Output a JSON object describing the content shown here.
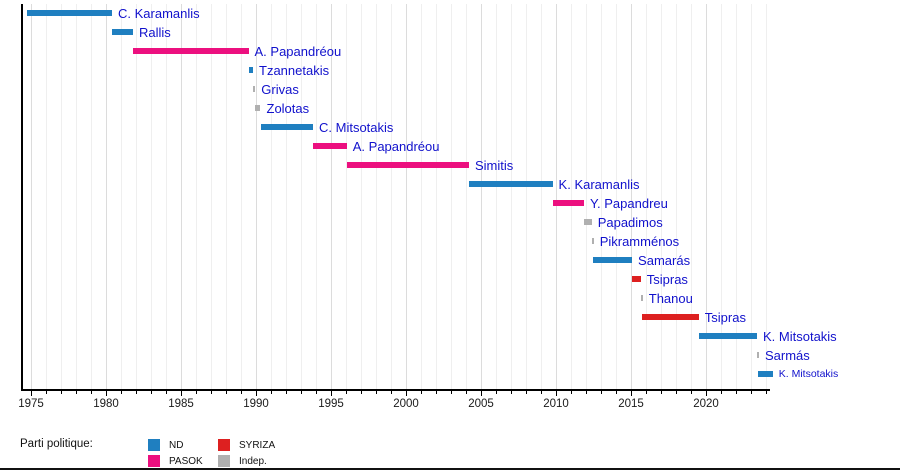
{
  "chart_data": {
    "type": "bar",
    "variant": "horizontal-timeline-gantt",
    "title": "",
    "xlabel": "",
    "ylabel": "",
    "grid": "vertical, one line per year, darker every 5 years",
    "xlim": [
      1974.4,
      2024.3
    ],
    "x_major_ticks": [
      1975,
      1980,
      1985,
      1990,
      1995,
      2000,
      2005,
      2010,
      2015,
      2020
    ],
    "x_minor_tick_every": 1,
    "party_colors": {
      "ND": "#1f7fc0",
      "PASOK": "#ec107f",
      "SYRIZA": "#dd2020",
      "Indep": "#b0b0b0"
    },
    "rows": [
      {
        "label": "C. Karamanlis",
        "party": "ND",
        "start": 1974.73,
        "end": 1980.4
      },
      {
        "label": "Rallis",
        "party": "ND",
        "start": 1980.4,
        "end": 1981.8
      },
      {
        "label": "A. Papandréou",
        "party": "PASOK",
        "start": 1981.8,
        "end": 1989.5
      },
      {
        "label": "Tzannetakis",
        "party": "ND",
        "start": 1989.5,
        "end": 1989.8
      },
      {
        "label": "Grivas",
        "party": "Indep",
        "start": 1989.82,
        "end": 1989.93
      },
      {
        "label": "Zolotas",
        "party": "Indep",
        "start": 1989.93,
        "end": 1990.3
      },
      {
        "label": "C. Mitsotakis",
        "party": "ND",
        "start": 1990.3,
        "end": 1993.8
      },
      {
        "label": "A. Papandréou",
        "party": "PASOK",
        "start": 1993.8,
        "end": 1996.05
      },
      {
        "label": "Simitis",
        "party": "PASOK",
        "start": 1996.05,
        "end": 2004.2
      },
      {
        "label": "K. Karamanlis",
        "party": "ND",
        "start": 2004.2,
        "end": 2009.77
      },
      {
        "label": "Y. Papandreu",
        "party": "PASOK",
        "start": 2009.77,
        "end": 2011.87
      },
      {
        "label": "Papadimos",
        "party": "Indep",
        "start": 2011.87,
        "end": 2012.38
      },
      {
        "label": "Pikramménos",
        "party": "Indep",
        "start": 2012.38,
        "end": 2012.47
      },
      {
        "label": "Samarás",
        "party": "ND",
        "start": 2012.47,
        "end": 2015.07
      },
      {
        "label": "Tsipras",
        "party": "SYRIZA",
        "start": 2015.07,
        "end": 2015.65
      },
      {
        "label": "Thanou",
        "party": "Indep",
        "start": 2015.65,
        "end": 2015.72
      },
      {
        "label": "Tsipras",
        "party": "SYRIZA",
        "start": 2015.72,
        "end": 2019.52
      },
      {
        "label": "K. Mitsotakis",
        "party": "ND",
        "start": 2019.52,
        "end": 2023.4
      },
      {
        "label": "Sarmás",
        "party": "Indep",
        "start": 2023.4,
        "end": 2023.48
      },
      {
        "label": "K. Mitsotakis",
        "party": "ND",
        "start": 2023.48,
        "end": 2024.45,
        "small_label": true
      }
    ]
  },
  "legend": {
    "title": "Parti politique:",
    "items": [
      {
        "label": "ND",
        "color": "#1f7fc0"
      },
      {
        "label": "PASOK",
        "color": "#ec107f"
      },
      {
        "label": "SYRIZA",
        "color": "#dd2020"
      },
      {
        "label": "Indep.",
        "color": "#b0b0b0"
      }
    ]
  }
}
